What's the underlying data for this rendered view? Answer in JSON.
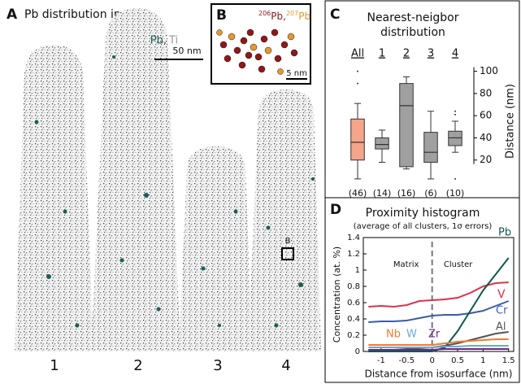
{
  "panels": {
    "a": {
      "label": "A",
      "title": "Pb distribution in rutile",
      "legend": [
        "Pb,",
        "Ti"
      ],
      "scale": "50 nm",
      "tips": [
        "1",
        "2",
        "3",
        "4"
      ],
      "box_label": "B"
    },
    "b": {
      "label": "B",
      "isotopes": [
        "206",
        "Pb,",
        "207",
        "Pb"
      ],
      "scale": "5 nm"
    },
    "c": {
      "label": "C"
    },
    "d": {
      "label": "D"
    }
  },
  "chart_data": [
    {
      "type": "box",
      "title": [
        "Nearest-neigbor",
        "distribution"
      ],
      "y_label": "Distance (nm)",
      "categories": [
        "All",
        "1",
        "2",
        "3",
        "4"
      ],
      "counts": [
        "(46)",
        "(14)",
        "(16)",
        "(6)",
        "(10)"
      ],
      "colors": [
        "#f4a58a",
        "#a0a0a0",
        "#a0a0a0",
        "#a0a0a0",
        "#a0a0a0"
      ],
      "whisker_low": [
        3,
        18,
        12,
        3,
        27
      ],
      "q1": [
        20,
        30,
        14,
        18,
        33
      ],
      "median": [
        36,
        34,
        69,
        27,
        40
      ],
      "q3": [
        57,
        40,
        89,
        45,
        46
      ],
      "whisker_high": [
        71,
        47,
        95,
        64,
        55
      ],
      "outliers": [
        [
          89,
          100
        ],
        [],
        [],
        [],
        [
          61,
          64,
          3
        ]
      ],
      "ylim": [
        0,
        110
      ],
      "yticks": [
        20,
        40,
        60,
        80,
        100
      ]
    },
    {
      "type": "line",
      "title": "Proximity histogram",
      "subtitle": "(average of all clusters, 1σ errors)",
      "x_label": "Distance from isosurface (nm)",
      "y_label": "Concentration (at. %)",
      "annotations": [
        "Matrix",
        "Cluster"
      ],
      "x": [
        -1.25,
        -1,
        -0.75,
        -0.5,
        -0.25,
        0,
        0.25,
        0.5,
        0.75,
        1,
        1.25,
        1.5
      ],
      "series": [
        {
          "name": "V",
          "color": "#e0304a",
          "values": [
            0.55,
            0.56,
            0.55,
            0.57,
            0.62,
            0.63,
            0.64,
            0.66,
            0.72,
            0.8,
            0.84,
            0.85
          ]
        },
        {
          "name": "Cr",
          "color": "#3a5ba8",
          "values": [
            0.36,
            0.37,
            0.37,
            0.38,
            0.41,
            0.44,
            0.45,
            0.45,
            0.47,
            0.5,
            0.56,
            0.62
          ]
        },
        {
          "name": "Pb",
          "color": "#0f5a4a",
          "values": [
            0,
            0,
            0,
            0,
            0,
            0,
            0.05,
            0.25,
            0.5,
            0.75,
            0.95,
            1.15
          ]
        },
        {
          "name": "Al",
          "color": "#555555",
          "values": [
            0.02,
            0.02,
            0.02,
            0.03,
            0.04,
            0.05,
            0.07,
            0.1,
            0.14,
            0.18,
            0.22,
            0.24
          ]
        },
        {
          "name": "Nb",
          "color": "#f07c30",
          "values": [
            0.08,
            0.08,
            0.08,
            0.08,
            0.08,
            0.08,
            0.1,
            0.12,
            0.13,
            0.14,
            0.15,
            0.15
          ]
        },
        {
          "name": "W",
          "color": "#6aa9d8",
          "values": [
            0.05,
            0.05,
            0.05,
            0.05,
            0.05,
            0.05,
            0.06,
            0.06,
            0.07,
            0.07,
            0.07,
            0.07
          ]
        },
        {
          "name": "Zr",
          "color": "#6a2a7a",
          "values": [
            0.02,
            0.02,
            0.02,
            0.02,
            0.02,
            0.02,
            0.03,
            0.03,
            0.03,
            0.03,
            0.03,
            0.03
          ]
        }
      ],
      "xlim": [
        -1.35,
        1.6
      ],
      "ylim": [
        0,
        1.4
      ],
      "xticks": [
        -1,
        -0.5,
        0,
        0.5,
        1,
        1.5
      ],
      "yticks": [
        0,
        0.2,
        0.4,
        0.6,
        0.8,
        1,
        1.2,
        1.4
      ]
    }
  ]
}
